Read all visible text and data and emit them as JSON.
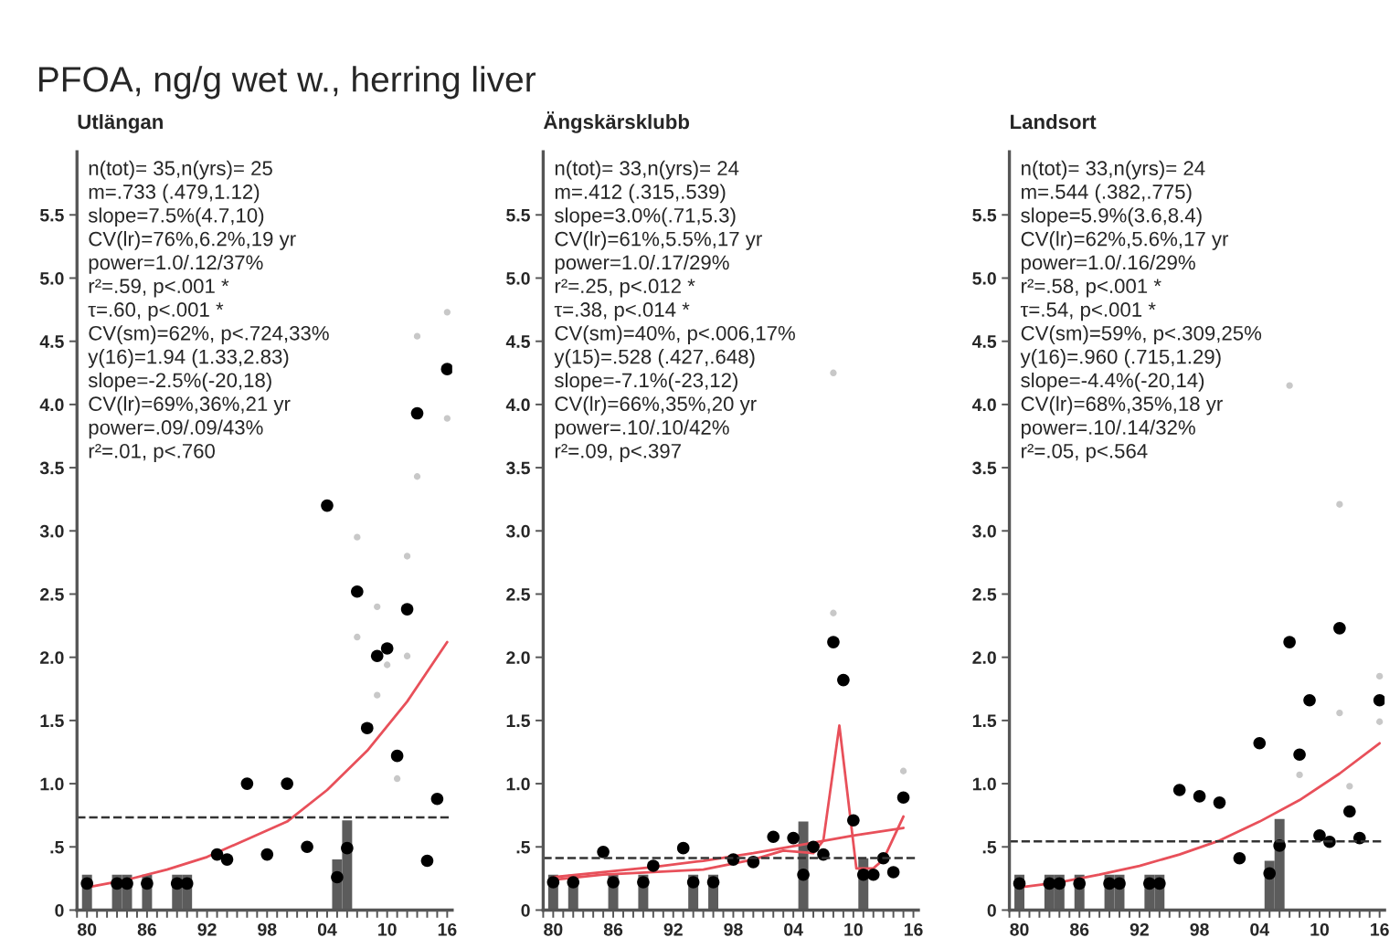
{
  "chart_data": [
    {
      "type": "scatter",
      "title": "PFOA, ng/g wet w., herring liver",
      "subtitle": "Utlängan",
      "annotations": [
        "n(tot)= 35,n(yrs)= 25",
        "m=.733 (.479,1.12)",
        "slope=7.5%(4.7,10)",
        "CV(lr)=76%,6.2%,19 yr",
        "power=1.0/.12/37%",
        "r²=.59, p<.001 *",
        "τ=.60, p<.001 *",
        "CV(sm)=62%, p<.724,33%",
        "y(16)=1.94 (1.33,2.83)",
        "slope=-2.5%(-20,18)",
        "CV(lr)=69%,36%,21 yr",
        "power=.09/.09/43%",
        "r²=.01, p<.760"
      ],
      "series": [
        {
          "type": "bar",
          "color": "#5c5c5c",
          "x": [
            1980,
            1983,
            1984,
            1986,
            1989,
            1990,
            2005,
            2006
          ],
          "values": [
            0.28,
            0.28,
            0.28,
            0.28,
            0.28,
            0.28,
            0.4,
            0.71
          ]
        },
        {
          "marker": "circle",
          "color": "#c8c8c8",
          "x": [
            2007,
            2007,
            2009,
            2009,
            2010,
            2011,
            2012,
            2012,
            2013,
            2013,
            2016,
            2016
          ],
          "values": [
            2.95,
            2.16,
            2.4,
            1.7,
            1.94,
            1.04,
            2.8,
            2.01,
            4.54,
            3.43,
            4.73,
            3.89
          ]
        },
        {
          "type": "line",
          "color": "#e8505a",
          "x": [
            1980,
            1984,
            1988,
            1992,
            1996,
            2000,
            2004,
            2008,
            2012,
            2016
          ],
          "values": [
            0.18,
            0.24,
            0.32,
            0.42,
            0.56,
            0.7,
            0.95,
            1.26,
            1.65,
            2.12
          ]
        },
        {
          "marker": "circle",
          "color": "#000000",
          "x": [
            1980,
            1983,
            1984,
            1986,
            1989,
            1990,
            1993,
            1994,
            1996,
            1998,
            2000,
            2002,
            2004,
            2005,
            2006,
            2007,
            2008,
            2009,
            2010,
            2011,
            2012,
            2013,
            2014,
            2015,
            2016
          ],
          "values": [
            0.21,
            0.21,
            0.21,
            0.21,
            0.21,
            0.21,
            0.44,
            0.4,
            1.0,
            0.44,
            1.0,
            0.5,
            3.2,
            0.26,
            0.49,
            2.52,
            1.44,
            2.01,
            2.07,
            1.22,
            2.38,
            3.93,
            0.39,
            0.88,
            4.28
          ]
        }
      ],
      "ref_lines": [
        {
          "axis": "y",
          "value": 0.733,
          "line_style": "dashed",
          "color": "#333333"
        }
      ],
      "xlim": [
        1979,
        2016.5
      ],
      "ylim": [
        0,
        6
      ],
      "xticks": [
        {
          "value": 1979,
          "label": null
        },
        {
          "value": 1980,
          "label": "80"
        },
        {
          "value": 1981,
          "label": null
        },
        {
          "value": 1982,
          "label": null
        },
        {
          "value": 1983,
          "label": null
        },
        {
          "value": 1984,
          "label": null
        },
        {
          "value": 1985,
          "label": null
        },
        {
          "value": 1986,
          "label": "86"
        },
        {
          "value": 1987,
          "label": null
        },
        {
          "value": 1988,
          "label": null
        },
        {
          "value": 1989,
          "label": null
        },
        {
          "value": 1990,
          "label": null
        },
        {
          "value": 1991,
          "label": null
        },
        {
          "value": 1992,
          "label": "92"
        },
        {
          "value": 1993,
          "label": null
        },
        {
          "value": 1994,
          "label": null
        },
        {
          "value": 1995,
          "label": null
        },
        {
          "value": 1996,
          "label": null
        },
        {
          "value": 1997,
          "label": null
        },
        {
          "value": 1998,
          "label": "98"
        },
        {
          "value": 1999,
          "label": null
        },
        {
          "value": 2000,
          "label": null
        },
        {
          "value": 2001,
          "label": null
        },
        {
          "value": 2002,
          "label": null
        },
        {
          "value": 2003,
          "label": null
        },
        {
          "value": 2004,
          "label": "04"
        },
        {
          "value": 2005,
          "label": null
        },
        {
          "value": 2006,
          "label": null
        },
        {
          "value": 2007,
          "label": null
        },
        {
          "value": 2008,
          "label": null
        },
        {
          "value": 2009,
          "label": null
        },
        {
          "value": 2010,
          "label": "10"
        },
        {
          "value": 2011,
          "label": null
        },
        {
          "value": 2012,
          "label": null
        },
        {
          "value": 2013,
          "label": null
        },
        {
          "value": 2014,
          "label": null
        },
        {
          "value": 2015,
          "label": null
        },
        {
          "value": 2016,
          "label": "16"
        }
      ],
      "yticks": [
        {
          "value": 0,
          "label": "0"
        },
        {
          "value": 0.5,
          "label": ".5"
        },
        {
          "value": 1.0,
          "label": "1.0"
        },
        {
          "value": 1.5,
          "label": "1.5"
        },
        {
          "value": 2.0,
          "label": "2.0"
        },
        {
          "value": 2.5,
          "label": "2.5"
        },
        {
          "value": 3.0,
          "label": "3.0"
        },
        {
          "value": 3.5,
          "label": "3.5"
        },
        {
          "value": 4.0,
          "label": "4.0"
        },
        {
          "value": 4.5,
          "label": "4.5"
        },
        {
          "value": 5.0,
          "label": "5.0"
        },
        {
          "value": 5.5,
          "label": "5.5"
        }
      ]
    },
    {
      "type": "scatter",
      "subtitle": "Ängskärsklubb",
      "annotations": [
        "n(tot)= 33,n(yrs)= 24",
        "m=.412 (.315,.539)",
        "slope=3.0%(.71,5.3)",
        "CV(lr)=61%,5.5%,17 yr",
        "power=1.0/.17/29%",
        "r²=.25, p<.012 *",
        "τ=.38, p<.014 *",
        "CV(sm)=40%, p<.006,17%",
        "y(15)=.528 (.427,.648)",
        "slope=-7.1%(-23,12)",
        "CV(lr)=66%,35%,20 yr",
        "power=.10/.10/42%",
        "r²=.09, p<.397"
      ],
      "series": [
        {
          "type": "bar",
          "color": "#5c5c5c",
          "x": [
            1980,
            1982,
            1986,
            1989,
            1994,
            1996,
            2005,
            2011
          ],
          "values": [
            0.28,
            0.28,
            0.28,
            0.28,
            0.28,
            0.28,
            0.7,
            0.41
          ]
        },
        {
          "marker": "circle",
          "color": "#c8c8c8",
          "x": [
            2008,
            2008,
            2015
          ],
          "values": [
            4.25,
            2.35,
            1.1
          ]
        },
        {
          "type": "line",
          "color": "#e8505a",
          "x": [
            1980,
            1985,
            1990,
            1995,
            2000,
            2005,
            2010,
            2015
          ],
          "values": [
            0.26,
            0.3,
            0.34,
            0.39,
            0.45,
            0.52,
            0.59,
            0.65
          ]
        },
        {
          "type": "line",
          "color": "#e8505a",
          "x": [
            1980,
            1985,
            1990,
            1995,
            2000,
            2003,
            2006,
            2007,
            2008.6,
            2010.3,
            2012,
            2013,
            2015
          ],
          "values": [
            0.24,
            0.28,
            0.3,
            0.32,
            0.4,
            0.47,
            0.45,
            0.55,
            1.46,
            0.33,
            0.33,
            0.4,
            0.74
          ]
        },
        {
          "marker": "circle",
          "color": "#000000",
          "x": [
            1980,
            1982,
            1985,
            1986,
            1989,
            1990,
            1993,
            1994,
            1996,
            1998,
            2000,
            2002,
            2004,
            2005,
            2006,
            2007,
            2008,
            2009,
            2010,
            2011,
            2012,
            2013,
            2014,
            2015
          ],
          "values": [
            0.22,
            0.22,
            0.46,
            0.22,
            0.22,
            0.35,
            0.49,
            0.22,
            0.22,
            0.4,
            0.38,
            0.58,
            0.57,
            0.28,
            0.5,
            0.44,
            2.12,
            1.82,
            0.71,
            0.28,
            0.28,
            0.41,
            0.3,
            0.89
          ]
        }
      ],
      "ref_lines": [
        {
          "axis": "y",
          "value": 0.412,
          "line_style": "dashed",
          "color": "#333333"
        }
      ],
      "xlim": [
        1979,
        2016.5
      ],
      "ylim": [
        0,
        6
      ],
      "xticks": [
        {
          "value": 1979,
          "label": null
        },
        {
          "value": 1980,
          "label": "80"
        },
        {
          "value": 1981,
          "label": null
        },
        {
          "value": 1982,
          "label": null
        },
        {
          "value": 1983,
          "label": null
        },
        {
          "value": 1984,
          "label": null
        },
        {
          "value": 1985,
          "label": null
        },
        {
          "value": 1986,
          "label": "86"
        },
        {
          "value": 1987,
          "label": null
        },
        {
          "value": 1988,
          "label": null
        },
        {
          "value": 1989,
          "label": null
        },
        {
          "value": 1990,
          "label": null
        },
        {
          "value": 1991,
          "label": null
        },
        {
          "value": 1992,
          "label": "92"
        },
        {
          "value": 1993,
          "label": null
        },
        {
          "value": 1994,
          "label": null
        },
        {
          "value": 1995,
          "label": null
        },
        {
          "value": 1996,
          "label": null
        },
        {
          "value": 1997,
          "label": null
        },
        {
          "value": 1998,
          "label": "98"
        },
        {
          "value": 1999,
          "label": null
        },
        {
          "value": 2000,
          "label": null
        },
        {
          "value": 2001,
          "label": null
        },
        {
          "value": 2002,
          "label": null
        },
        {
          "value": 2003,
          "label": null
        },
        {
          "value": 2004,
          "label": "04"
        },
        {
          "value": 2005,
          "label": null
        },
        {
          "value": 2006,
          "label": null
        },
        {
          "value": 2007,
          "label": null
        },
        {
          "value": 2008,
          "label": null
        },
        {
          "value": 2009,
          "label": null
        },
        {
          "value": 2010,
          "label": "10"
        },
        {
          "value": 2011,
          "label": null
        },
        {
          "value": 2012,
          "label": null
        },
        {
          "value": 2013,
          "label": null
        },
        {
          "value": 2014,
          "label": null
        },
        {
          "value": 2015,
          "label": null
        },
        {
          "value": 2016,
          "label": "16"
        }
      ],
      "yticks": [
        {
          "value": 0,
          "label": "0"
        },
        {
          "value": 0.5,
          "label": ".5"
        },
        {
          "value": 1.0,
          "label": "1.0"
        },
        {
          "value": 1.5,
          "label": "1.5"
        },
        {
          "value": 2.0,
          "label": "2.0"
        },
        {
          "value": 2.5,
          "label": "2.5"
        },
        {
          "value": 3.0,
          "label": "3.0"
        },
        {
          "value": 3.5,
          "label": "3.5"
        },
        {
          "value": 4.0,
          "label": "4.0"
        },
        {
          "value": 4.5,
          "label": "4.5"
        },
        {
          "value": 5.0,
          "label": "5.0"
        },
        {
          "value": 5.5,
          "label": "5.5"
        }
      ]
    },
    {
      "type": "scatter",
      "subtitle": "Landsort",
      "annotations": [
        "n(tot)= 33,n(yrs)= 24",
        "m=.544 (.382,.775)",
        "slope=5.9%(3.6,8.4)",
        "CV(lr)=62%,5.6%,17 yr",
        "power=1.0/.16/29%",
        "r²=.58, p<.001 *",
        "τ=.54, p<.001 *",
        "CV(sm)=59%, p<.309,25%",
        "y(16)=.960 (.715,1.29)",
        "slope=-4.4%(-20,14)",
        "CV(lr)=68%,35%,18 yr",
        "power=.10/.14/32%",
        "r²=.05, p<.564"
      ],
      "series": [
        {
          "type": "bar",
          "color": "#5c5c5c",
          "x": [
            1980,
            1983,
            1984,
            1986,
            1989,
            1990,
            1993,
            1994,
            2005,
            2006
          ],
          "values": [
            0.28,
            0.28,
            0.28,
            0.28,
            0.28,
            0.28,
            0.28,
            0.28,
            0.39,
            0.72
          ]
        },
        {
          "marker": "circle",
          "color": "#c8c8c8",
          "x": [
            2007,
            2012,
            2008,
            2012,
            2013,
            2016,
            2016
          ],
          "values": [
            4.15,
            3.21,
            1.07,
            1.56,
            0.98,
            1.85,
            1.49
          ]
        },
        {
          "type": "line",
          "color": "#e8505a",
          "x": [
            1980,
            1984,
            1988,
            1992,
            1996,
            2000,
            2004,
            2008,
            2012,
            2016
          ],
          "values": [
            0.18,
            0.22,
            0.28,
            0.35,
            0.44,
            0.55,
            0.7,
            0.87,
            1.08,
            1.32
          ]
        },
        {
          "marker": "circle",
          "color": "#000000",
          "x": [
            1980,
            1983,
            1984,
            1986,
            1989,
            1990,
            1993,
            1994,
            1996,
            1998,
            2000,
            2002,
            2004,
            2005,
            2006,
            2007,
            2008,
            2009,
            2010,
            2011,
            2012,
            2013,
            2014,
            2016
          ],
          "values": [
            0.21,
            0.21,
            0.21,
            0.21,
            0.21,
            0.21,
            0.21,
            0.21,
            0.95,
            0.9,
            0.85,
            0.41,
            1.32,
            0.29,
            0.51,
            2.12,
            1.23,
            1.66,
            0.59,
            0.54,
            2.23,
            0.78,
            0.57,
            1.66
          ]
        }
      ],
      "ref_lines": [
        {
          "axis": "y",
          "value": 0.544,
          "line_style": "dashed",
          "color": "#333333"
        }
      ],
      "xlim": [
        1979,
        2016.5
      ],
      "ylim": [
        0,
        6
      ],
      "xticks": [
        {
          "value": 1979,
          "label": null
        },
        {
          "value": 1980,
          "label": "80"
        },
        {
          "value": 1981,
          "label": null
        },
        {
          "value": 1982,
          "label": null
        },
        {
          "value": 1983,
          "label": null
        },
        {
          "value": 1984,
          "label": null
        },
        {
          "value": 1985,
          "label": null
        },
        {
          "value": 1986,
          "label": "86"
        },
        {
          "value": 1987,
          "label": null
        },
        {
          "value": 1988,
          "label": null
        },
        {
          "value": 1989,
          "label": null
        },
        {
          "value": 1990,
          "label": null
        },
        {
          "value": 1991,
          "label": null
        },
        {
          "value": 1992,
          "label": "92"
        },
        {
          "value": 1993,
          "label": null
        },
        {
          "value": 1994,
          "label": null
        },
        {
          "value": 1995,
          "label": null
        },
        {
          "value": 1996,
          "label": null
        },
        {
          "value": 1997,
          "label": null
        },
        {
          "value": 1998,
          "label": "98"
        },
        {
          "value": 1999,
          "label": null
        },
        {
          "value": 2000,
          "label": null
        },
        {
          "value": 2001,
          "label": null
        },
        {
          "value": 2002,
          "label": null
        },
        {
          "value": 2003,
          "label": null
        },
        {
          "value": 2004,
          "label": "04"
        },
        {
          "value": 2005,
          "label": null
        },
        {
          "value": 2006,
          "label": null
        },
        {
          "value": 2007,
          "label": null
        },
        {
          "value": 2008,
          "label": null
        },
        {
          "value": 2009,
          "label": null
        },
        {
          "value": 2010,
          "label": "10"
        },
        {
          "value": 2011,
          "label": null
        },
        {
          "value": 2012,
          "label": null
        },
        {
          "value": 2013,
          "label": null
        },
        {
          "value": 2014,
          "label": null
        },
        {
          "value": 2015,
          "label": null
        },
        {
          "value": 2016,
          "label": "16"
        }
      ],
      "yticks": [
        {
          "value": 0,
          "label": "0"
        },
        {
          "value": 0.5,
          "label": ".5"
        },
        {
          "value": 1.0,
          "label": "1.0"
        },
        {
          "value": 1.5,
          "label": "1.5"
        },
        {
          "value": 2.0,
          "label": "2.0"
        },
        {
          "value": 2.5,
          "label": "2.5"
        },
        {
          "value": 3.0,
          "label": "3.0"
        },
        {
          "value": 3.5,
          "label": "3.5"
        },
        {
          "value": 4.0,
          "label": "4.0"
        },
        {
          "value": 4.5,
          "label": "4.5"
        },
        {
          "value": 5.0,
          "label": "5.0"
        },
        {
          "value": 5.5,
          "label": "5.5"
        }
      ]
    }
  ]
}
